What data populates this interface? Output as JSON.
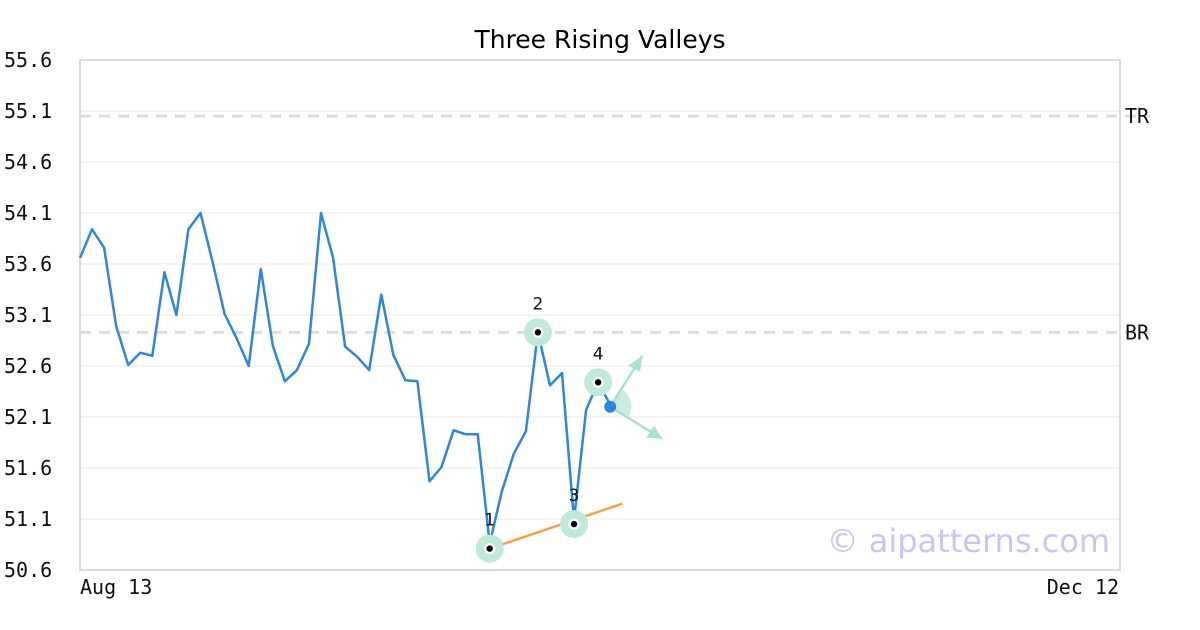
{
  "chart_data": {
    "type": "line",
    "title": "Three Rising Valleys",
    "xlabel": "",
    "ylabel": "",
    "ylim": [
      50.6,
      55.6
    ],
    "yticks": [
      "55.6",
      "55.1",
      "54.6",
      "54.1",
      "53.6",
      "53.1",
      "52.6",
      "52.1",
      "51.6",
      "51.1",
      "50.6"
    ],
    "x_range_labels": [
      "Aug 13",
      "Dec 12"
    ],
    "grid": true,
    "series": [
      {
        "values": [
          53.66,
          53.94,
          53.76,
          52.99,
          52.61,
          52.73,
          52.7,
          53.52,
          53.1,
          53.94,
          54.1,
          53.62,
          53.11,
          52.87,
          52.6,
          53.55,
          52.8,
          52.45,
          52.56,
          52.82,
          54.1,
          53.66,
          52.79,
          52.69,
          52.56,
          53.3,
          52.71,
          52.46,
          52.45,
          51.47,
          51.61,
          51.97,
          51.93,
          51.93,
          50.86,
          51.37,
          51.74,
          51.96,
          52.93,
          52.41,
          52.53,
          51.09,
          52.17,
          52.44,
          52.22
        ],
        "color": "#2e86de"
      }
    ],
    "reference_lines": [
      {
        "label": "TR",
        "value": 55.05
      },
      {
        "label": "BR",
        "value": 52.93
      }
    ],
    "pivots": [
      {
        "label": "1",
        "index": 34,
        "value": 50.81
      },
      {
        "label": "2",
        "index": 38,
        "value": 52.93
      },
      {
        "label": "3",
        "index": 41,
        "value": 51.05
      },
      {
        "label": "4",
        "index": 43,
        "value": 52.44
      }
    ],
    "trendline": {
      "start_index": 34,
      "start_value": 50.81,
      "end_index": 45,
      "end_value": 51.25,
      "color": "#f4a14a"
    },
    "current_point": {
      "index": 44,
      "value": 52.2
    },
    "watermark": "© aipatterns.com",
    "colors": {
      "line": "#2e86de",
      "pivot_halo": "#bfe9d9",
      "trendline": "#f4a14a",
      "arrows": "#a7e3c5",
      "reference": "#dddddd",
      "grid": "#e8e8e8",
      "frame": "#dcdcdc"
    }
  }
}
